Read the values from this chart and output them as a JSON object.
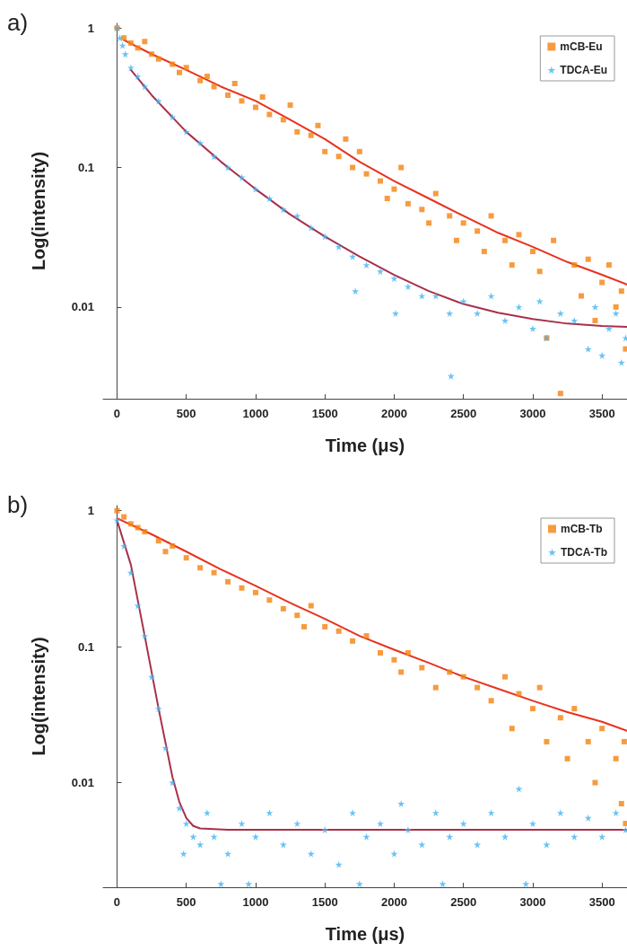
{
  "chart_data": [
    {
      "type": "scatter",
      "xlabel": "Time (μs)",
      "ylabel": "Log(intensity)",
      "log": "y",
      "legend": "top right",
      "grid": false,
      "annotations": [
        "a)"
      ],
      "xlim": [
        -100,
        3680
      ],
      "xticks": [
        0,
        500,
        1000,
        1500,
        2000,
        2500,
        3000,
        3500
      ],
      "ylim": [
        0.0022,
        1.08
      ],
      "yticks": [
        0.01,
        0.1,
        1
      ],
      "series": [
        {
          "name": "mCB-Eu",
          "color": "#f5820f",
          "marker": "square",
          "x": [
            0,
            50,
            100,
            150,
            200,
            250,
            300,
            400,
            450,
            500,
            600,
            650,
            700,
            800,
            850,
            900,
            1000,
            1050,
            1100,
            1200,
            1250,
            1300,
            1400,
            1450,
            1500,
            1600,
            1650,
            1700,
            1750,
            1800,
            1900,
            1950,
            2000,
            2050,
            2100,
            2200,
            2250,
            2300,
            2400,
            2450,
            2500,
            2600,
            2650,
            2700,
            2800,
            2850,
            2900,
            3000,
            3050,
            3100,
            3150,
            3200,
            3300,
            3350,
            3400,
            3450,
            3500,
            3550,
            3600,
            3640,
            3670
          ],
          "values": [
            1.0,
            0.85,
            0.78,
            0.72,
            0.8,
            0.65,
            0.6,
            0.55,
            0.48,
            0.52,
            0.42,
            0.45,
            0.38,
            0.33,
            0.4,
            0.3,
            0.27,
            0.32,
            0.24,
            0.22,
            0.28,
            0.18,
            0.17,
            0.2,
            0.13,
            0.12,
            0.16,
            0.1,
            0.13,
            0.09,
            0.08,
            0.06,
            0.07,
            0.1,
            0.055,
            0.05,
            0.04,
            0.065,
            0.045,
            0.03,
            0.04,
            0.035,
            0.025,
            0.045,
            0.03,
            0.02,
            0.033,
            0.025,
            0.018,
            0.006,
            0.03,
            0.0024,
            0.02,
            0.012,
            0.022,
            0.008,
            0.015,
            0.02,
            0.01,
            0.013,
            0.005
          ]
        },
        {
          "name": "TDCA-Eu",
          "color": "#45b4f0",
          "marker": "star",
          "x": [
            0,
            20,
            40,
            60,
            100,
            150,
            200,
            300,
            400,
            500,
            600,
            700,
            800,
            900,
            1000,
            1100,
            1200,
            1300,
            1400,
            1500,
            1600,
            1700,
            1720,
            1800,
            1900,
            2000,
            2010,
            2100,
            2200,
            2300,
            2400,
            2410,
            2500,
            2600,
            2700,
            2800,
            2900,
            3000,
            3050,
            3100,
            3200,
            3300,
            3400,
            3450,
            3500,
            3550,
            3600,
            3640,
            3670
          ],
          "values": [
            1.0,
            0.85,
            0.75,
            0.65,
            0.52,
            0.45,
            0.38,
            0.3,
            0.23,
            0.18,
            0.15,
            0.12,
            0.1,
            0.085,
            0.07,
            0.06,
            0.05,
            0.045,
            0.037,
            0.032,
            0.027,
            0.023,
            0.013,
            0.02,
            0.018,
            0.016,
            0.009,
            0.014,
            0.012,
            0.012,
            0.009,
            0.0032,
            0.011,
            0.009,
            0.012,
            0.008,
            0.01,
            0.007,
            0.011,
            0.006,
            0.009,
            0.008,
            0.005,
            0.01,
            0.0045,
            0.007,
            0.009,
            0.004,
            0.006
          ]
        },
        {
          "type": "line",
          "color": "#e8321e",
          "marker": "none",
          "x": [
            50,
            250,
            500,
            750,
            1000,
            1250,
            1500,
            1750,
            2000,
            2250,
            2500,
            2750,
            3000,
            3250,
            3500,
            3680
          ],
          "values": [
            0.82,
            0.65,
            0.5,
            0.38,
            0.3,
            0.22,
            0.16,
            0.11,
            0.08,
            0.06,
            0.045,
            0.034,
            0.027,
            0.021,
            0.017,
            0.0145
          ]
        },
        {
          "type": "line",
          "color": "#a8304a",
          "marker": "none",
          "x": [
            100,
            250,
            500,
            750,
            1000,
            1250,
            1500,
            1750,
            2000,
            2250,
            2500,
            2750,
            3000,
            3250,
            3500,
            3680
          ],
          "values": [
            0.5,
            0.33,
            0.18,
            0.11,
            0.07,
            0.046,
            0.032,
            0.023,
            0.017,
            0.013,
            0.0105,
            0.0091,
            0.0082,
            0.0076,
            0.0073,
            0.0072
          ]
        }
      ]
    },
    {
      "type": "scatter",
      "xlabel": "Time (μs)",
      "ylabel": "Log(intensity)",
      "log": "y",
      "legend": "top right",
      "grid": false,
      "annotations": [
        "b)"
      ],
      "xlim": [
        -100,
        3680
      ],
      "xticks": [
        0,
        500,
        1000,
        1500,
        2000,
        2500,
        3000,
        3500
      ],
      "ylim": [
        0.0017,
        1.09
      ],
      "yticks": [
        0.01,
        0.1,
        1
      ],
      "series": [
        {
          "name": "mCB-Tb",
          "color": "#f5820f",
          "marker": "square",
          "x": [
            0,
            50,
            100,
            150,
            200,
            300,
            350,
            400,
            500,
            600,
            700,
            800,
            900,
            1000,
            1100,
            1200,
            1300,
            1350,
            1400,
            1500,
            1600,
            1700,
            1800,
            1900,
            2000,
            2050,
            2100,
            2200,
            2300,
            2400,
            2500,
            2600,
            2700,
            2800,
            2850,
            2900,
            3000,
            3050,
            3100,
            3200,
            3250,
            3300,
            3400,
            3450,
            3500,
            3600,
            3640,
            3660,
            3670
          ],
          "values": [
            1.0,
            0.9,
            0.8,
            0.75,
            0.7,
            0.6,
            0.5,
            0.55,
            0.45,
            0.38,
            0.35,
            0.3,
            0.27,
            0.25,
            0.22,
            0.19,
            0.17,
            0.14,
            0.2,
            0.14,
            0.13,
            0.11,
            0.12,
            0.09,
            0.08,
            0.065,
            0.09,
            0.07,
            0.05,
            0.065,
            0.06,
            0.05,
            0.04,
            0.06,
            0.025,
            0.045,
            0.035,
            0.05,
            0.02,
            0.03,
            0.015,
            0.035,
            0.02,
            0.01,
            0.025,
            0.015,
            0.007,
            0.02,
            0.005
          ]
        },
        {
          "name": "TDCA-Tb",
          "color": "#45b4f0",
          "marker": "star",
          "x": [
            0,
            50,
            100,
            150,
            200,
            250,
            300,
            350,
            400,
            450,
            480,
            500,
            550,
            600,
            650,
            700,
            750,
            800,
            900,
            950,
            1000,
            1100,
            1200,
            1300,
            1400,
            1500,
            1600,
            1700,
            1750,
            1800,
            1900,
            2000,
            2050,
            2100,
            2200,
            2300,
            2350,
            2400,
            2500,
            2600,
            2700,
            2800,
            2900,
            2950,
            3000,
            3100,
            3200,
            3300,
            3400,
            3500,
            3600,
            3670
          ],
          "values": [
            0.85,
            0.55,
            0.35,
            0.2,
            0.12,
            0.06,
            0.035,
            0.018,
            0.01,
            0.0065,
            0.003,
            0.005,
            0.004,
            0.0035,
            0.006,
            0.004,
            0.0018,
            0.003,
            0.005,
            0.0018,
            0.004,
            0.006,
            0.0035,
            0.005,
            0.003,
            0.0045,
            0.0025,
            0.006,
            0.0018,
            0.004,
            0.005,
            0.003,
            0.007,
            0.0045,
            0.0035,
            0.006,
            0.0018,
            0.004,
            0.005,
            0.0035,
            0.006,
            0.004,
            0.009,
            0.0018,
            0.005,
            0.0035,
            0.006,
            0.004,
            0.0055,
            0.004,
            0.006,
            0.0045
          ]
        },
        {
          "type": "line",
          "color": "#e8321e",
          "marker": "none",
          "x": [
            0,
            250,
            500,
            750,
            1000,
            1250,
            1500,
            1750,
            2000,
            2250,
            2500,
            2750,
            3000,
            3250,
            3500,
            3680
          ],
          "values": [
            0.88,
            0.67,
            0.5,
            0.37,
            0.28,
            0.21,
            0.16,
            0.12,
            0.095,
            0.076,
            0.06,
            0.049,
            0.04,
            0.033,
            0.028,
            0.024
          ]
        },
        {
          "type": "line",
          "color": "#a8304a",
          "marker": "none",
          "x": [
            0,
            100,
            200,
            300,
            400,
            450,
            500,
            550,
            600,
            800,
            1000,
            2000,
            3000,
            3680
          ],
          "values": [
            0.85,
            0.4,
            0.12,
            0.035,
            0.011,
            0.0072,
            0.0055,
            0.0048,
            0.0046,
            0.0045,
            0.0045,
            0.0045,
            0.0045,
            0.0045
          ]
        }
      ]
    }
  ]
}
